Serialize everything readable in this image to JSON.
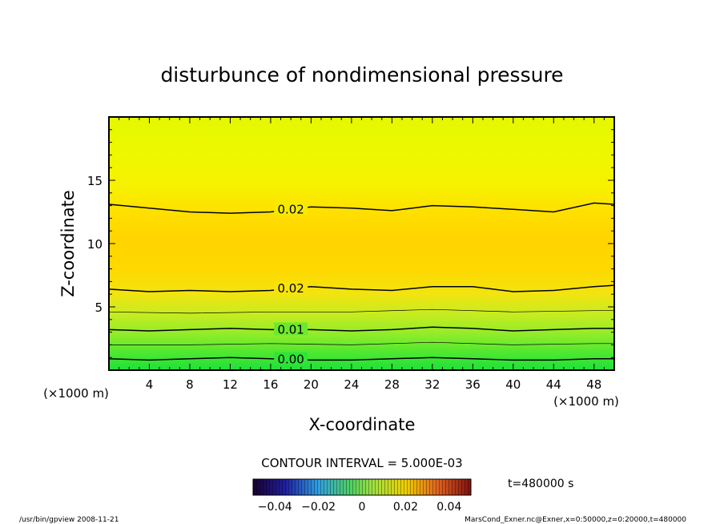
{
  "chart_data": {
    "type": "heatmap",
    "title": "disturbunce of nondimensional pressure",
    "xlabel": "X-coordinate",
    "ylabel": "Z-coordinate",
    "x_unit": "(×1000 m)",
    "y_unit": "(×1000 m)",
    "xlim": [
      0,
      50
    ],
    "ylim": [
      0,
      20
    ],
    "x_ticks": [
      4,
      8,
      12,
      16,
      20,
      24,
      28,
      32,
      36,
      40,
      44,
      48
    ],
    "y_ticks": [
      5,
      10,
      15
    ],
    "contour_interval_label": "CONTOUR INTERVAL = 5.000E-03",
    "contours": [
      {
        "label": "0.02",
        "x": [
          0,
          4,
          8,
          12,
          16,
          20,
          24,
          28,
          32,
          36,
          40,
          44,
          48,
          50
        ],
        "z": [
          13.1,
          12.8,
          12.5,
          12.4,
          12.5,
          12.9,
          12.8,
          12.6,
          13.0,
          12.9,
          12.7,
          12.5,
          13.2,
          13.1
        ]
      },
      {
        "label": "0.02",
        "x": [
          0,
          4,
          8,
          12,
          16,
          20,
          24,
          28,
          32,
          36,
          40,
          44,
          48,
          50
        ],
        "z": [
          6.4,
          6.2,
          6.3,
          6.2,
          6.3,
          6.6,
          6.4,
          6.3,
          6.6,
          6.6,
          6.2,
          6.3,
          6.6,
          6.7
        ]
      },
      {
        "label": "0.01",
        "x": [
          0,
          4,
          8,
          12,
          16,
          20,
          24,
          28,
          32,
          36,
          40,
          44,
          48,
          50
        ],
        "z": [
          3.2,
          3.1,
          3.2,
          3.3,
          3.2,
          3.2,
          3.1,
          3.2,
          3.4,
          3.3,
          3.1,
          3.2,
          3.3,
          3.3
        ]
      },
      {
        "label": "0.00",
        "x": [
          0,
          4,
          8,
          12,
          16,
          20,
          24,
          28,
          32,
          36,
          40,
          44,
          48,
          50
        ],
        "z": [
          0.9,
          0.8,
          0.9,
          1.0,
          0.9,
          0.8,
          0.8,
          0.9,
          1.0,
          0.9,
          0.8,
          0.8,
          0.9,
          0.9
        ]
      }
    ],
    "minor_contours": [
      {
        "x": [
          0,
          8,
          16,
          24,
          32,
          40,
          48,
          50
        ],
        "z": [
          4.6,
          4.5,
          4.6,
          4.6,
          4.8,
          4.6,
          4.7,
          4.7
        ]
      },
      {
        "x": [
          0,
          8,
          16,
          24,
          32,
          40,
          48,
          50
        ],
        "z": [
          2.0,
          2.0,
          2.1,
          2.0,
          2.2,
          2.0,
          2.1,
          2.1
        ]
      }
    ],
    "colorbar": {
      "tick_labels": [
        "−0.04",
        "−0.02",
        "0",
        "0.02",
        "0.04"
      ],
      "min": -0.05,
      "max": 0.05
    }
  },
  "time_label": "t=480000 s",
  "footer_left": "/usr/bin/gpview   2008-11-21",
  "footer_right": "MarsCond_Exner.nc@Exner,x=0:50000,z=0:20000,t=480000"
}
